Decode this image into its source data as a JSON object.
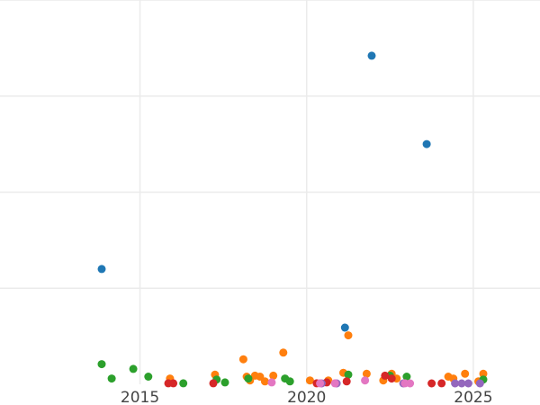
{
  "chart_data": {
    "type": "scatter",
    "title": "",
    "xlabel": "",
    "ylabel": "",
    "grid": true,
    "legend": "none",
    "xlim": [
      2010.8,
      2027.0
    ],
    "ylim": [
      0,
      400
    ],
    "xticks": [
      2015,
      2020,
      2025
    ],
    "xtick_labels": [
      "2015",
      "2020",
      "2025"
    ],
    "yticks": [
      100,
      200,
      300,
      400
    ],
    "colors": {
      "blue": "#1f77b4",
      "orange": "#ff7f0e",
      "green": "#2ca02c",
      "red": "#d62728",
      "purple": "#9467bd",
      "pink": "#e377c2"
    },
    "series": [
      {
        "color": "blue",
        "points": [
          [
            2013.85,
            120
          ],
          [
            2021.95,
            342
          ],
          [
            2023.6,
            250
          ],
          [
            2021.15,
            59
          ]
        ]
      },
      {
        "color": "orange",
        "points": [
          [
            2015.9,
            6
          ],
          [
            2017.25,
            10
          ],
          [
            2018.1,
            26
          ],
          [
            2018.2,
            8
          ],
          [
            2018.3,
            4
          ],
          [
            2018.45,
            9
          ],
          [
            2018.6,
            8
          ],
          [
            2018.75,
            3
          ],
          [
            2019.0,
            9
          ],
          [
            2019.3,
            33
          ],
          [
            2020.1,
            4
          ],
          [
            2020.65,
            4
          ],
          [
            2021.1,
            12
          ],
          [
            2021.25,
            51
          ],
          [
            2021.8,
            11
          ],
          [
            2022.3,
            4
          ],
          [
            2022.55,
            11
          ],
          [
            2022.7,
            6
          ],
          [
            2024.25,
            8
          ],
          [
            2024.4,
            6
          ],
          [
            2024.75,
            11
          ],
          [
            2025.15,
            3
          ],
          [
            2025.3,
            11
          ]
        ]
      },
      {
        "color": "green",
        "points": [
          [
            2013.85,
            21
          ],
          [
            2014.15,
            6
          ],
          [
            2014.8,
            16
          ],
          [
            2015.25,
            8
          ],
          [
            2016.3,
            1
          ],
          [
            2017.3,
            5
          ],
          [
            2017.55,
            2
          ],
          [
            2018.25,
            6
          ],
          [
            2019.35,
            6
          ],
          [
            2019.5,
            3
          ],
          [
            2021.25,
            10
          ],
          [
            2022.5,
            9
          ],
          [
            2023.0,
            8
          ],
          [
            2025.3,
            5
          ]
        ]
      },
      {
        "color": "red",
        "points": [
          [
            2015.85,
            1
          ],
          [
            2016.0,
            1
          ],
          [
            2017.2,
            1
          ],
          [
            2020.3,
            1
          ],
          [
            2020.6,
            2
          ],
          [
            2021.2,
            3
          ],
          [
            2022.35,
            9
          ],
          [
            2022.55,
            6
          ],
          [
            2023.75,
            0
          ],
          [
            2024.05,
            1
          ]
        ]
      },
      {
        "color": "purple",
        "points": [
          [
            2020.45,
            0
          ],
          [
            2020.9,
            0
          ],
          [
            2022.9,
            0
          ],
          [
            2024.45,
            0
          ],
          [
            2024.65,
            0
          ],
          [
            2024.85,
            0
          ],
          [
            2025.2,
            0
          ]
        ]
      },
      {
        "color": "pink",
        "points": [
          [
            2018.95,
            2
          ],
          [
            2020.4,
            1
          ],
          [
            2020.85,
            1
          ],
          [
            2021.75,
            4
          ],
          [
            2022.95,
            1
          ],
          [
            2023.1,
            0
          ]
        ]
      }
    ]
  }
}
